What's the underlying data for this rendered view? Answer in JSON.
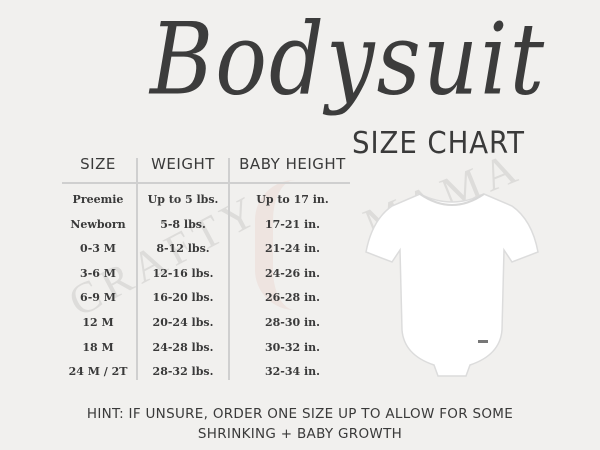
{
  "title": "Bodysuit",
  "subtitle": "SIZE CHART",
  "watermark": {
    "left": "CRAFTY",
    "right": "MAMA"
  },
  "table": {
    "headers": [
      "SIZE",
      "WEIGHT",
      "BABY HEIGHT"
    ],
    "rows": [
      [
        "Preemie",
        "Up to 5 lbs.",
        "Up to 17 in."
      ],
      [
        "Newborn",
        "5-8 lbs.",
        "17-21 in."
      ],
      [
        "0-3 M",
        "8-12 lbs.",
        "21-24 in."
      ],
      [
        "3-6 M",
        "12-16 lbs.",
        "24-26 in."
      ],
      [
        "6-9 M",
        "16-20 lbs.",
        "26-28 in."
      ],
      [
        "12 M",
        "20-24 lbs.",
        "28-30 in."
      ],
      [
        "18 M",
        "24-28 lbs.",
        "30-32 in."
      ],
      [
        "24 M / 2T",
        "28-32 lbs.",
        "32-34 in."
      ]
    ]
  },
  "hint": {
    "line1": "HINT: IF UNSURE, ORDER ONE SIZE UP TO ALLOW FOR SOME",
    "line2": "SHRINKING + BABY GROWTH"
  },
  "colors": {
    "background": "#f1f0ee",
    "text": "#3a3a3a",
    "garment": "#ffffff"
  }
}
